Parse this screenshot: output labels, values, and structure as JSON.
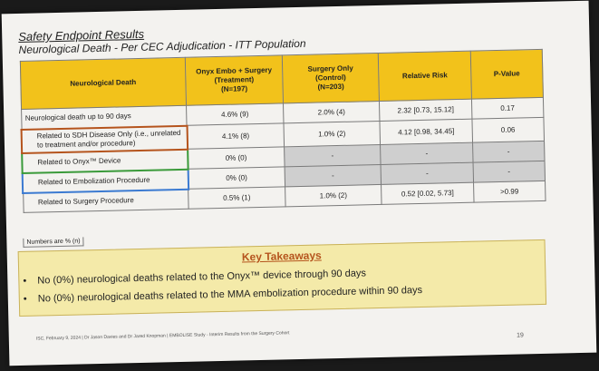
{
  "title": "Safety Endpoint Results",
  "subtitle": "Neurological Death - Per CEC Adjudication - ITT Population",
  "table": {
    "headers": {
      "col1": "Neurological Death",
      "col2": [
        "Onyx Embo + Surgery",
        "(Treatment)",
        "(N=197)"
      ],
      "col3": [
        "Surgery Only",
        "(Control)",
        "(N=203)"
      ],
      "col4": "Relative Risk",
      "col5": "P-Value"
    },
    "rows": [
      {
        "label": "Neurological death up to 90 days",
        "treatment": "4.6% (9)",
        "control": "2.0% (4)",
        "rr": "2.32 [0.73, 15.12]",
        "p": "0.17"
      },
      {
        "label": "Related to SDH Disease Only (i.e., unrelated to treatment and/or procedure)",
        "treatment": "4.1% (8)",
        "control": "1.0% (2)",
        "rr": "4.12 [0.98, 34.45]",
        "p": "0.06"
      },
      {
        "label": "Related to Onyx™ Device",
        "treatment": "0% (0)",
        "control": "-",
        "rr": "-",
        "p": "-"
      },
      {
        "label": "Related to Embolization Procedure",
        "treatment": "0% (0)",
        "control": "-",
        "rr": "-",
        "p": "-"
      },
      {
        "label": "Related to Surgery Procedure",
        "treatment": "0.5% (1)",
        "control": "1.0% (2)",
        "rr": "0.52 [0.02, 5.73]",
        "p": ">0.99"
      }
    ],
    "note": "Numbers are % (n)"
  },
  "takeaways": {
    "title": "Key Takeaways",
    "items": [
      "No (0%) neurological deaths related to the Onyx™ device through 90 days",
      "No (0%) neurological deaths related to the MMA embolization procedure within 90 days"
    ]
  },
  "footer": "ISC, February 9, 2024 | Dr Jason Davies and Dr Jared Knopman | EMBOLISE Study - Interim Results from the Surgery Cohort",
  "page_number": "19",
  "colors": {
    "header_bg": "#f2c21b",
    "takeaway_bg": "#f4eaa9",
    "takeaway_title": "#b5541d",
    "sdh_border": "#b5541d",
    "onyx_border": "#3a9a3a",
    "embolization_border": "#3b7ad1"
  }
}
